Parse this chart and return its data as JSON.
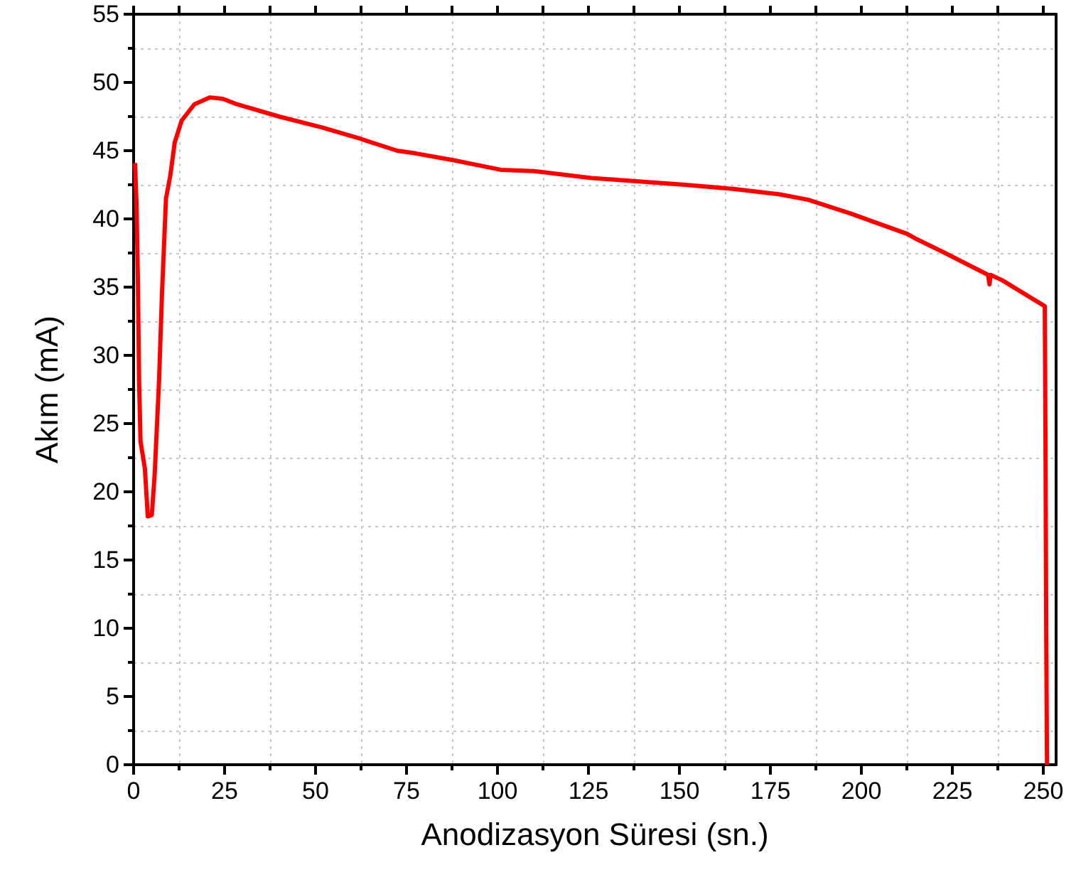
{
  "chart_data": {
    "type": "line",
    "xlabel": "Anodizasyon Süresi (sn.)",
    "ylabel": "Akım (mA)",
    "xlim": [
      0,
      253.5
    ],
    "ylim": [
      0,
      55
    ],
    "xticks": [
      0,
      {
        "value": 12.5,
        "label": null
      },
      25,
      {
        "value": 37.5,
        "label": null
      },
      50,
      {
        "value": 62.5,
        "label": null
      },
      75,
      {
        "value": 87.5,
        "label": null
      },
      100,
      {
        "value": 112.5,
        "label": null
      },
      125,
      {
        "value": 137.5,
        "label": null
      },
      150,
      {
        "value": 162.5,
        "label": null
      },
      175,
      {
        "value": 187.5,
        "label": null
      },
      200,
      {
        "value": 212.5,
        "label": null
      },
      225,
      {
        "value": 237.5,
        "label": null
      },
      250
    ],
    "yticks": [
      0,
      {
        "value": 2.5,
        "label": null
      },
      5,
      {
        "value": 7.5,
        "label": null
      },
      10,
      {
        "value": 12.5,
        "label": null
      },
      15,
      {
        "value": 17.5,
        "label": null
      },
      20,
      {
        "value": 22.5,
        "label": null
      },
      25,
      {
        "value": 27.5,
        "label": null
      },
      30,
      {
        "value": 32.5,
        "label": null
      },
      35,
      {
        "value": 37.5,
        "label": null
      },
      40,
      {
        "value": 42.5,
        "label": null
      },
      45,
      {
        "value": 47.5,
        "label": null
      },
      50,
      {
        "value": 52.5,
        "label": null
      },
      55
    ],
    "grid": true,
    "marker": "none",
    "line_style": "solid",
    "series": [
      {
        "color": "#ff0000",
        "x": [
          0.4,
          0.8,
          1.2,
          1.5,
          1.9,
          3.1,
          3.9,
          5.0,
          5.8,
          7.0,
          7.8,
          8.9,
          10.1,
          11.3,
          13.2,
          16.7,
          21.0,
          24.5,
          28.4,
          40.0,
          51.8,
          62.0,
          72.4,
          77.5,
          88.0,
          100.9,
          110.0,
          125.8,
          141.4,
          151.5,
          164.7,
          177.6,
          185.4,
          197.0,
          212.6,
          215.3,
          223.0,
          234.8,
          235.2,
          235.5,
          238.7,
          250.4,
          250.6,
          250.8,
          251.0,
          251.2
        ],
        "values": [
          44.1,
          41.1,
          35.2,
          28.2,
          23.7,
          21.7,
          18.2,
          18.3,
          21.3,
          28.2,
          34.5,
          41.5,
          43.2,
          45.6,
          47.2,
          48.4,
          48.9,
          48.8,
          48.4,
          47.5,
          46.7,
          45.9,
          45.0,
          44.8,
          44.3,
          43.6,
          43.5,
          43.0,
          42.7,
          42.5,
          42.2,
          41.8,
          41.4,
          40.4,
          38.9,
          38.5,
          37.5,
          35.9,
          35.2,
          35.9,
          35.5,
          33.6,
          22.7,
          9.2,
          0,
          0
        ]
      }
    ]
  }
}
